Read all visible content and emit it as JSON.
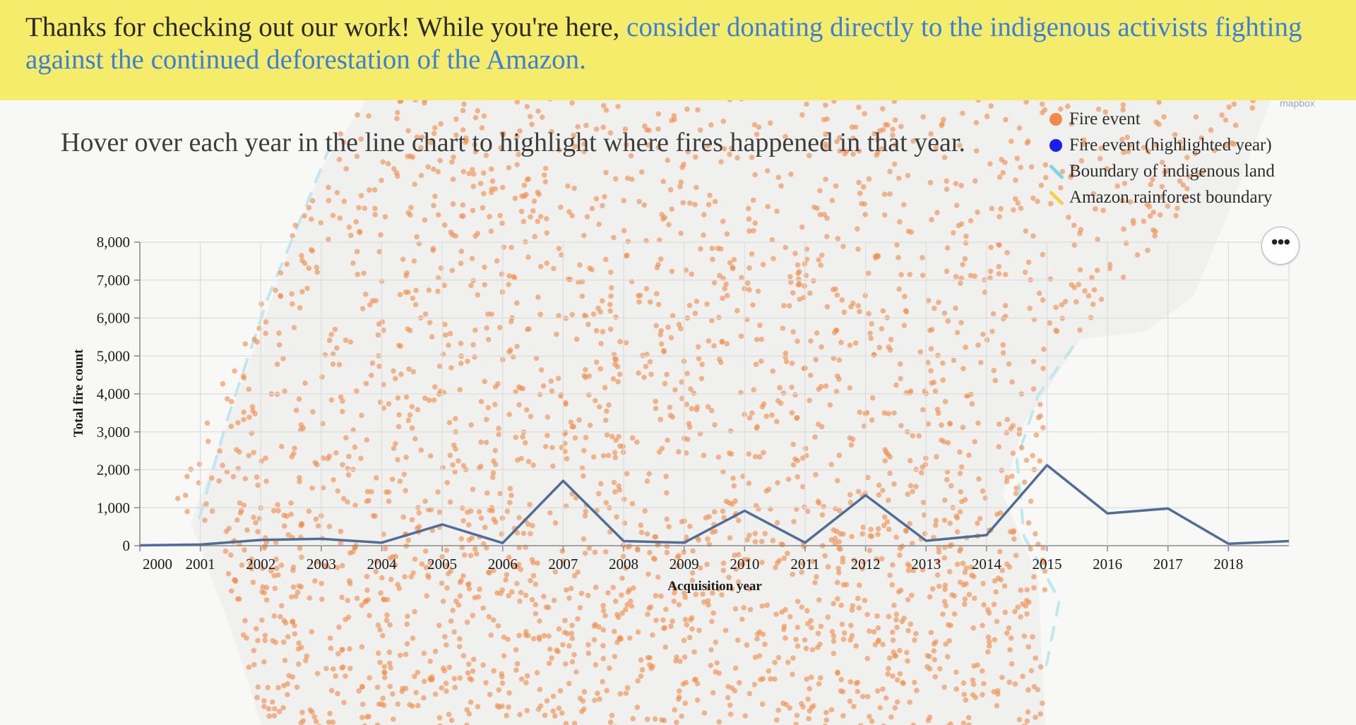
{
  "banner": {
    "text": "Thanks for checking out our work! While you're here, ",
    "link_text": "consider donating directly to the indigenous activists fighting against the continued deforestation of the Amazon."
  },
  "subtitle": "Hover over each year in the line chart to highlight where fires happened in that year.",
  "legend": {
    "items": [
      {
        "label": "Fire event",
        "symbol": "dot",
        "color": "#ef8a4a"
      },
      {
        "label": "Fire event (highlighted year)",
        "symbol": "dot",
        "color": "#1a1ee6"
      },
      {
        "label": "Boundary of indigenous land",
        "symbol": "line",
        "color": "#7fd6e8"
      },
      {
        "label": "Amazon rainforest boundary",
        "symbol": "line",
        "color": "#f2d24a"
      }
    ]
  },
  "map": {
    "attribution": "mapbox",
    "land_color": "#f0f0ee",
    "fire_color": "#ef8a4a",
    "indigenous_boundary_color": "#bfe7ef"
  },
  "menu": {
    "more_icon": "more-icon",
    "label": "•••"
  },
  "chart_data": {
    "type": "line",
    "x": [
      2000,
      2001,
      2002,
      2003,
      2004,
      2005,
      2006,
      2007,
      2008,
      2009,
      2010,
      2011,
      2012,
      2013,
      2014,
      2015,
      2016,
      2017,
      2018,
      2019
    ],
    "series": [
      {
        "values": [
          10,
          30,
          150,
          180,
          80,
          560,
          70,
          1710,
          120,
          80,
          920,
          80,
          1330,
          130,
          280,
          2120,
          850,
          980,
          50,
          120
        ]
      }
    ],
    "x_tick_labels": [
      "2000",
      "2001",
      "2002",
      "2003",
      "2004",
      "2005",
      "2006",
      "2007",
      "2008",
      "2009",
      "2010",
      "2011",
      "2012",
      "2013",
      "2014",
      "2015",
      "2016",
      "2017",
      "2018"
    ],
    "y_ticks": [
      0,
      1000,
      2000,
      3000,
      4000,
      5000,
      6000,
      7000,
      8000
    ],
    "y_tick_labels": [
      "0",
      "1,000",
      "2,000",
      "3,000",
      "4,000",
      "5,000",
      "6,000",
      "7,000",
      "8,000"
    ],
    "xlabel": "Acquisition year",
    "ylabel": "Total fire count",
    "ylim": [
      0,
      8000
    ],
    "xlim": [
      2000,
      2019
    ],
    "grid": true,
    "line_color": "#4f6d96"
  }
}
